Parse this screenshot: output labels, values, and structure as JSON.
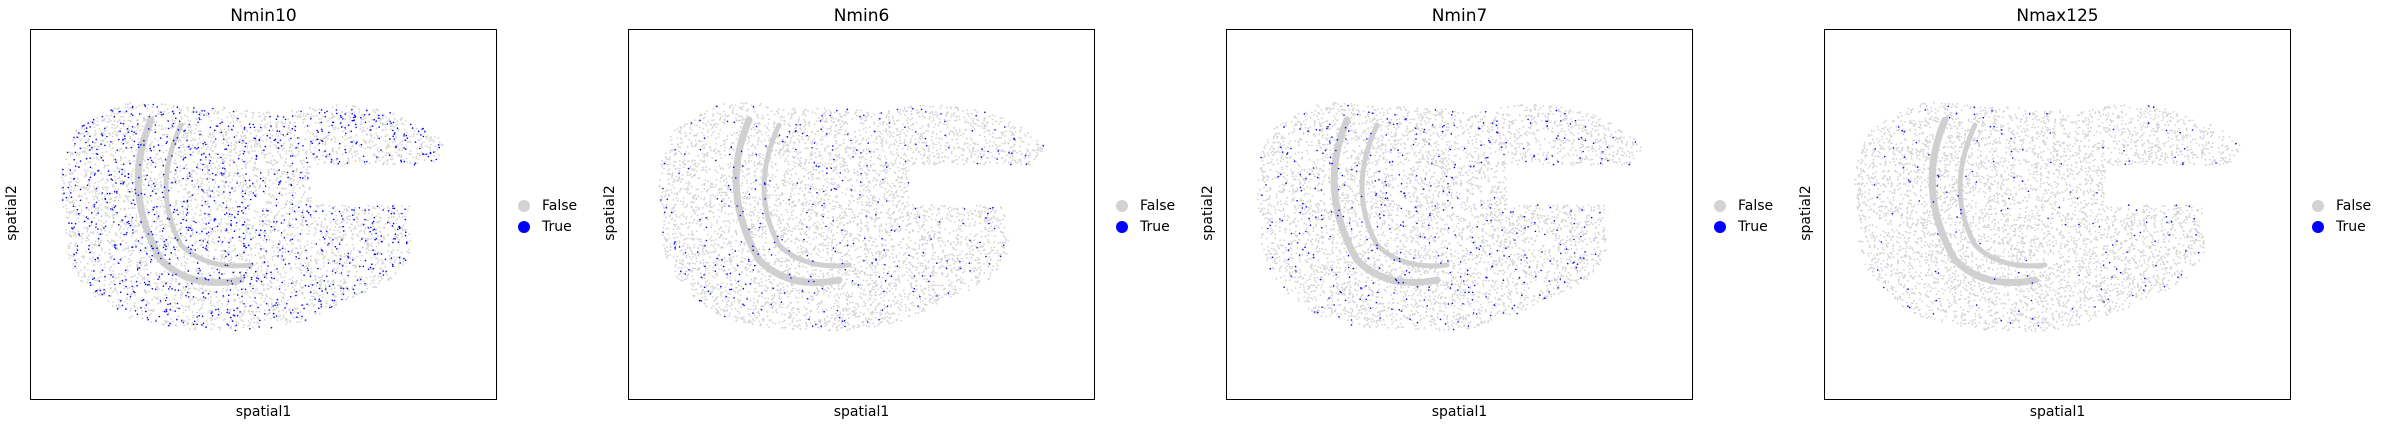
{
  "chart_data": [
    {
      "type": "scatter",
      "title": "Nmin10",
      "xlabel": "spatial1",
      "ylabel": "spatial2",
      "legend": [
        {
          "label": "False",
          "color": "#d3d3d3"
        },
        {
          "label": "True",
          "color": "#0000ff"
        }
      ],
      "true_fraction": 0.22,
      "legend_position": "right",
      "grid": false
    },
    {
      "type": "scatter",
      "title": "Nmin6",
      "xlabel": "spatial1",
      "ylabel": "spatial2",
      "legend": [
        {
          "label": "False",
          "color": "#d3d3d3"
        },
        {
          "label": "True",
          "color": "#0000ff"
        }
      ],
      "true_fraction": 0.06,
      "legend_position": "right",
      "grid": false
    },
    {
      "type": "scatter",
      "title": "Nmin7",
      "xlabel": "spatial1",
      "ylabel": "spatial2",
      "legend": [
        {
          "label": "False",
          "color": "#d3d3d3"
        },
        {
          "label": "True",
          "color": "#0000ff"
        }
      ],
      "true_fraction": 0.08,
      "legend_position": "right",
      "grid": false
    },
    {
      "type": "scatter",
      "title": "Nmax125",
      "xlabel": "spatial1",
      "ylabel": "spatial2",
      "legend": [
        {
          "label": "False",
          "color": "#d3d3d3"
        },
        {
          "label": "True",
          "color": "#0000ff"
        }
      ],
      "true_fraction": 0.03,
      "legend_position": "right",
      "grid": false
    }
  ]
}
